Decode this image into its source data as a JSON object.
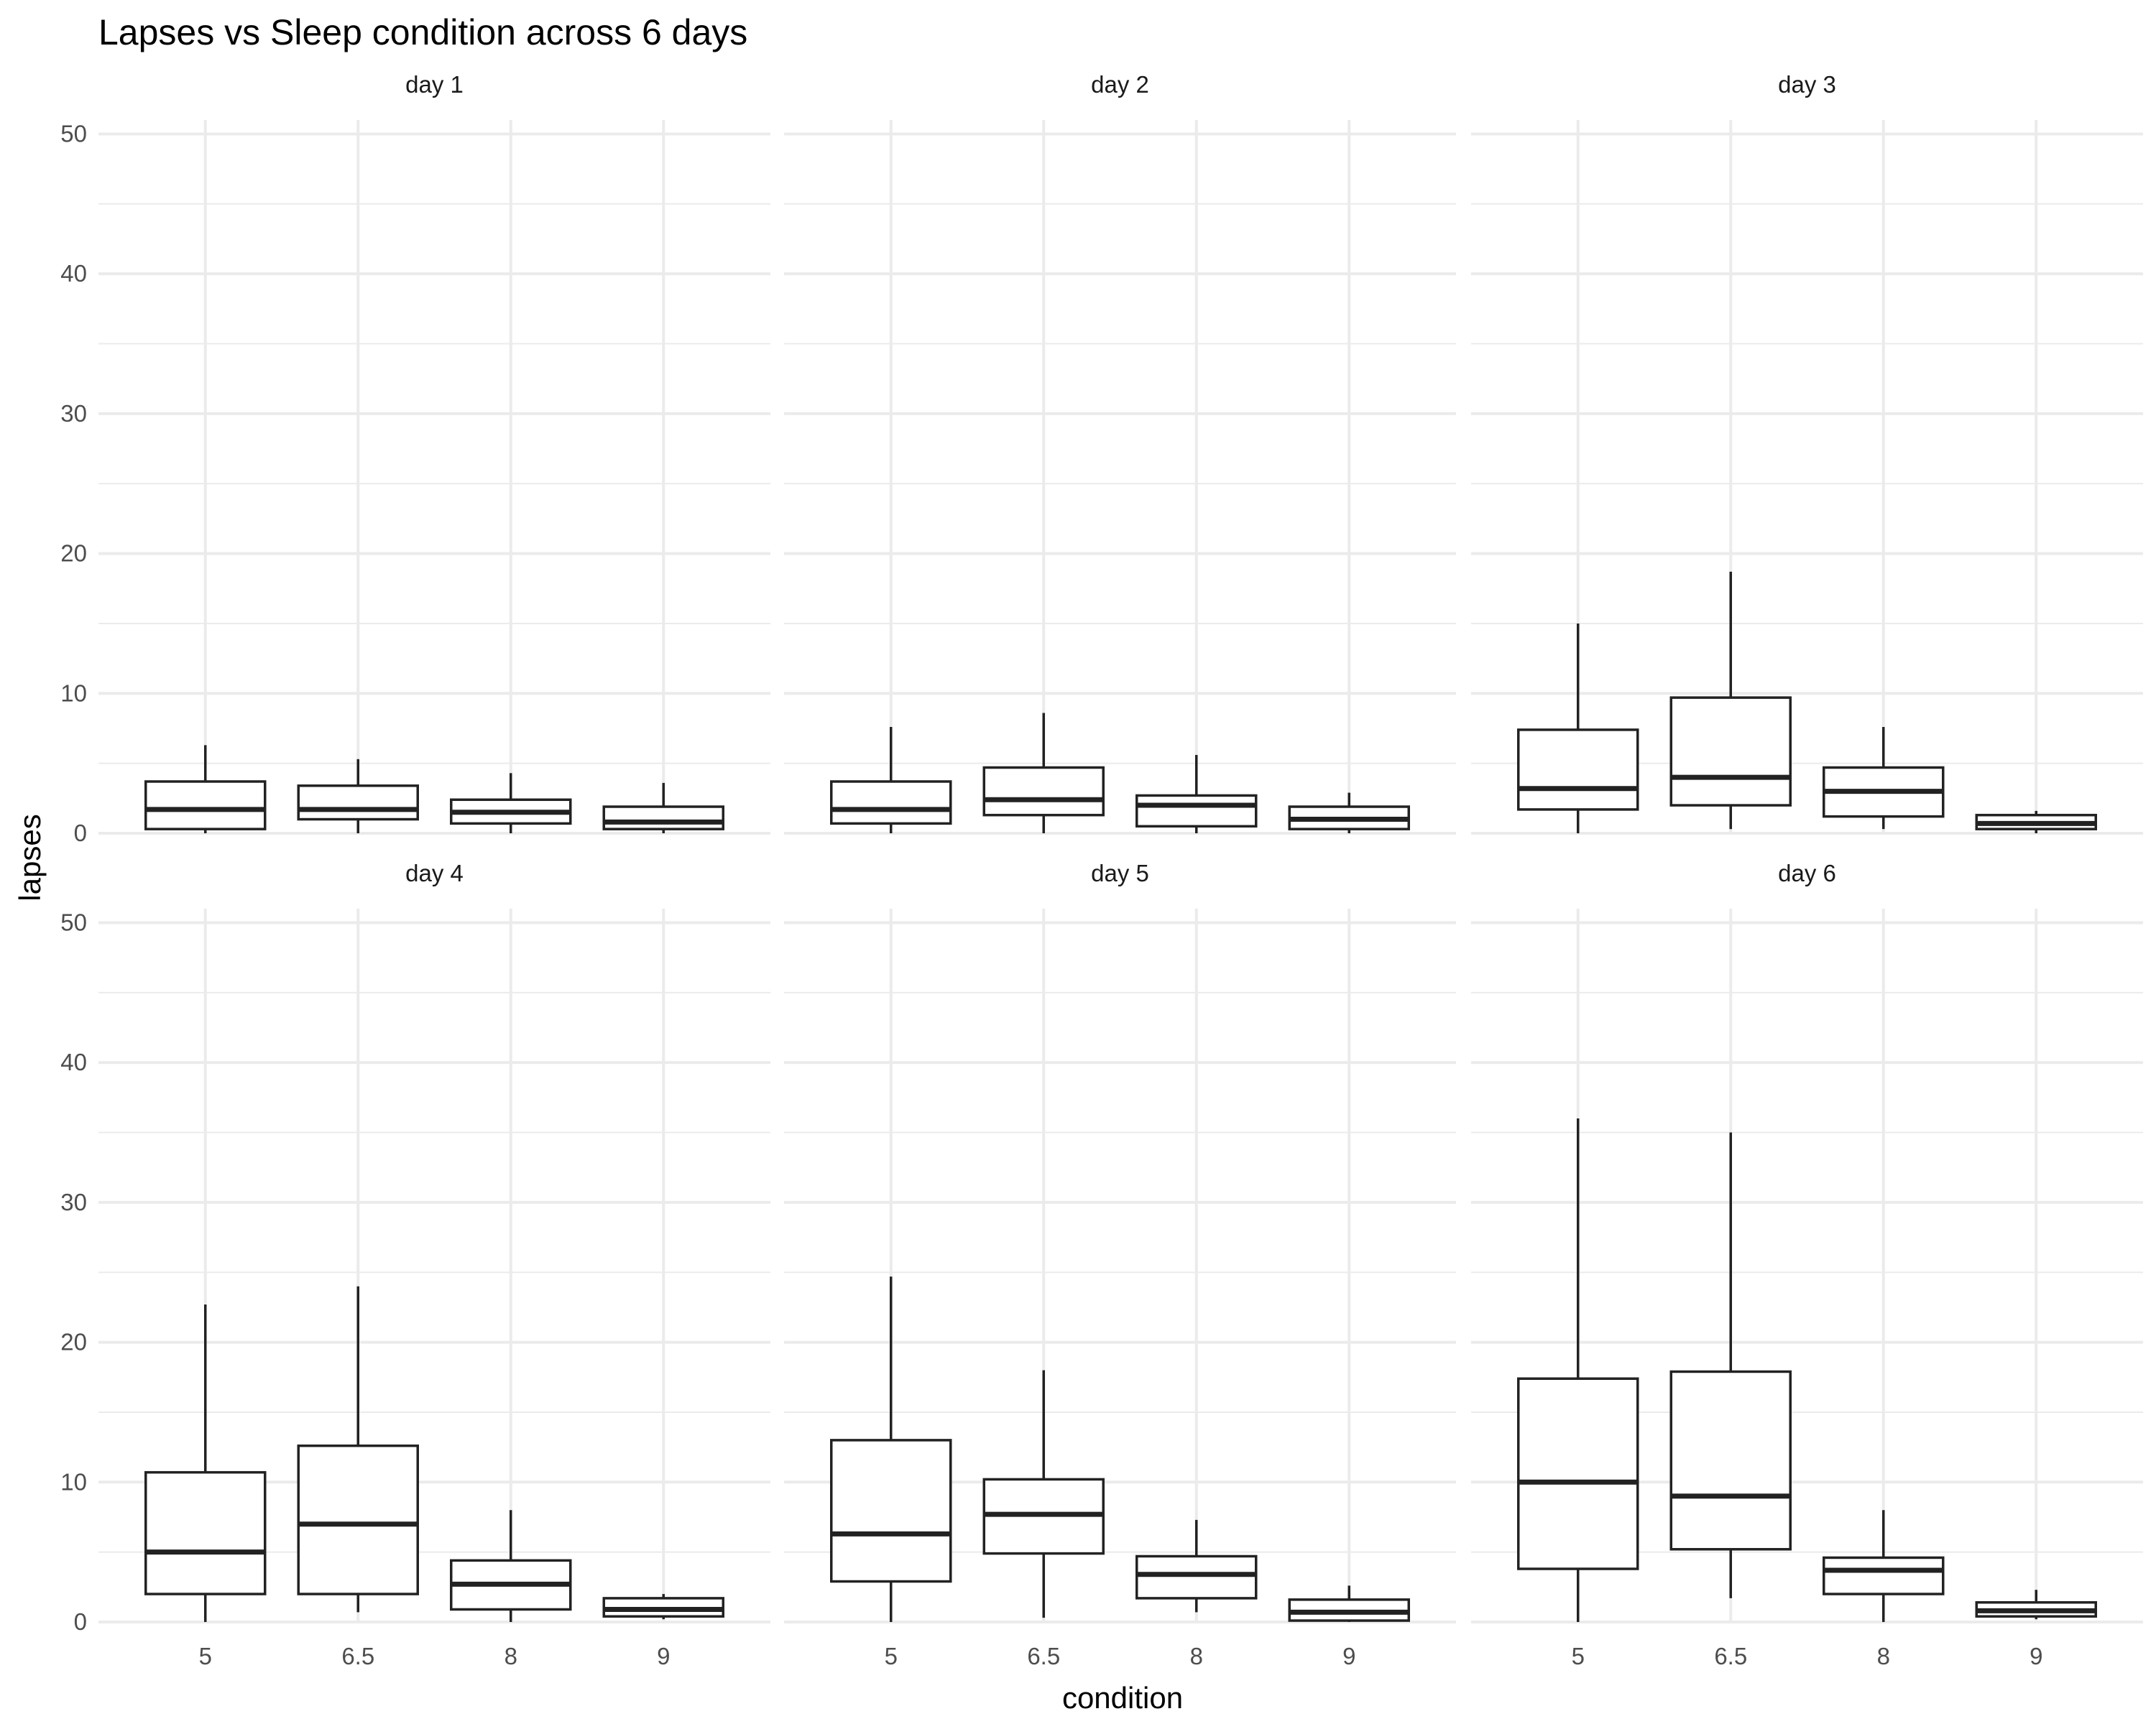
{
  "chart_data": {
    "type": "boxplot",
    "title": "Lapses vs Sleep condition across 6 days",
    "xlabel": "condition",
    "ylabel": "lapses",
    "categories": [
      "5",
      "6.5",
      "8",
      "9"
    ],
    "ylim": [
      0,
      51
    ],
    "y_ticks": [
      "0",
      "10",
      "20",
      "30",
      "40",
      "50"
    ],
    "grid": true,
    "facets": [
      {
        "label": "day 1",
        "boxes": [
          {
            "category": "5",
            "min": 0,
            "q1": 0.3,
            "median": 1.7,
            "q3": 3.7,
            "max": 6.3
          },
          {
            "category": "6.5",
            "min": 0,
            "q1": 1.0,
            "median": 1.7,
            "q3": 3.4,
            "max": 5.3
          },
          {
            "category": "8",
            "min": 0,
            "q1": 0.7,
            "median": 1.5,
            "q3": 2.4,
            "max": 4.3
          },
          {
            "category": "9",
            "min": 0,
            "q1": 0.3,
            "median": 0.8,
            "q3": 1.9,
            "max": 3.6
          }
        ]
      },
      {
        "label": "day 2",
        "boxes": [
          {
            "category": "5",
            "min": 0,
            "q1": 0.7,
            "median": 1.7,
            "q3": 3.7,
            "max": 7.6
          },
          {
            "category": "6.5",
            "min": 0,
            "q1": 1.3,
            "median": 2.4,
            "q3": 4.7,
            "max": 8.6
          },
          {
            "category": "8",
            "min": 0,
            "q1": 0.5,
            "median": 2.0,
            "q3": 2.7,
            "max": 5.6
          },
          {
            "category": "9",
            "min": 0,
            "q1": 0.3,
            "median": 1.0,
            "q3": 1.9,
            "max": 2.9
          }
        ]
      },
      {
        "label": "day 3",
        "boxes": [
          {
            "category": "5",
            "min": 0,
            "q1": 1.7,
            "median": 3.2,
            "q3": 7.4,
            "max": 15.0
          },
          {
            "category": "6.5",
            "min": 0.3,
            "q1": 2.0,
            "median": 4.0,
            "q3": 9.7,
            "max": 18.7
          },
          {
            "category": "8",
            "min": 0.3,
            "q1": 1.2,
            "median": 3.0,
            "q3": 4.7,
            "max": 7.6
          },
          {
            "category": "9",
            "min": 0,
            "q1": 0.3,
            "median": 0.7,
            "q3": 1.3,
            "max": 1.6
          }
        ]
      },
      {
        "label": "day 4",
        "boxes": [
          {
            "category": "5",
            "min": 0,
            "q1": 2.0,
            "median": 5.0,
            "q3": 10.7,
            "max": 22.7
          },
          {
            "category": "6.5",
            "min": 0.7,
            "q1": 2.0,
            "median": 7.0,
            "q3": 12.6,
            "max": 24.0
          },
          {
            "category": "8",
            "min": 0,
            "q1": 0.9,
            "median": 2.7,
            "q3": 4.4,
            "max": 8.0
          },
          {
            "category": "9",
            "min": 0.2,
            "q1": 0.4,
            "median": 0.9,
            "q3": 1.7,
            "max": 2.0
          }
        ]
      },
      {
        "label": "day 5",
        "boxes": [
          {
            "category": "5",
            "min": 0,
            "q1": 2.9,
            "median": 6.3,
            "q3": 13.0,
            "max": 24.7
          },
          {
            "category": "6.5",
            "min": 0.3,
            "q1": 4.9,
            "median": 7.7,
            "q3": 10.2,
            "max": 18.0
          },
          {
            "category": "8",
            "min": 0.7,
            "q1": 1.7,
            "median": 3.4,
            "q3": 4.7,
            "max": 7.3
          },
          {
            "category": "9",
            "min": 0,
            "q1": 0.1,
            "median": 0.7,
            "q3": 1.6,
            "max": 2.6
          }
        ]
      },
      {
        "label": "day 6",
        "boxes": [
          {
            "category": "5",
            "min": 0,
            "q1": 3.8,
            "median": 10.0,
            "q3": 17.4,
            "max": 36.0
          },
          {
            "category": "6.5",
            "min": 1.7,
            "q1": 5.2,
            "median": 9.0,
            "q3": 17.9,
            "max": 35.0
          },
          {
            "category": "8",
            "min": 0,
            "q1": 2.0,
            "median": 3.7,
            "q3": 4.6,
            "max": 8.0
          },
          {
            "category": "9",
            "min": 0.2,
            "q1": 0.4,
            "median": 0.8,
            "q3": 1.4,
            "max": 2.3
          }
        ]
      }
    ]
  }
}
